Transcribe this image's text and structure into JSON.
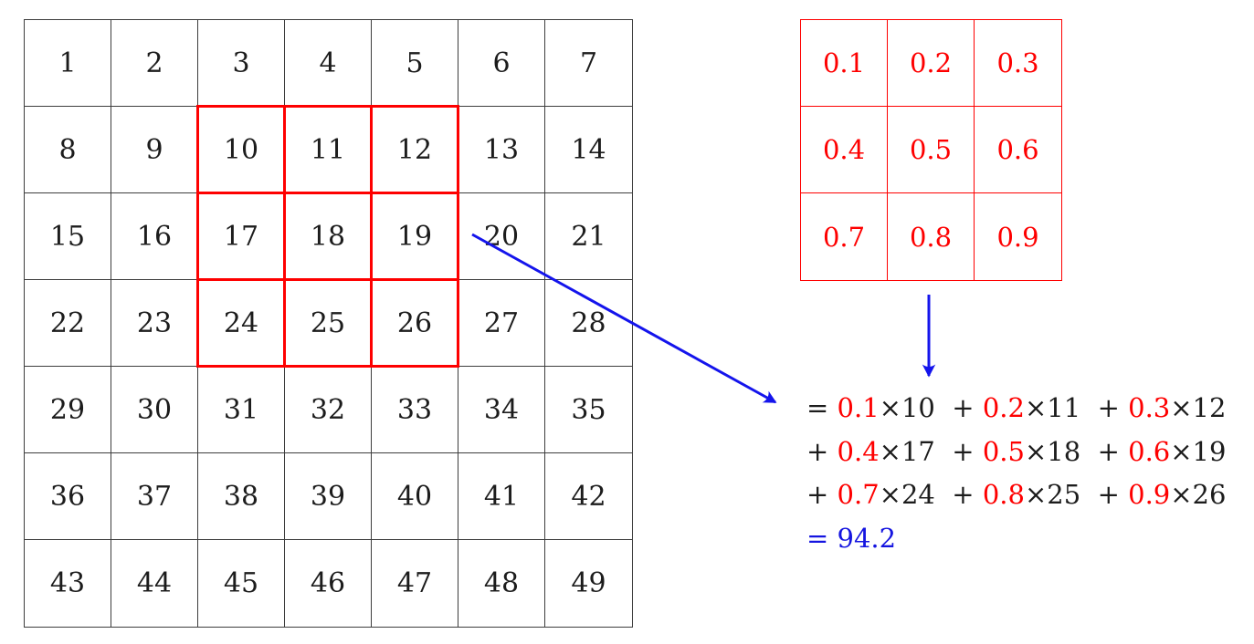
{
  "input_grid": {
    "rows": 7,
    "cols": 7,
    "values": [
      1,
      2,
      3,
      4,
      5,
      6,
      7,
      8,
      9,
      10,
      11,
      12,
      13,
      14,
      15,
      16,
      17,
      18,
      19,
      20,
      21,
      22,
      23,
      24,
      25,
      26,
      27,
      28,
      29,
      30,
      31,
      32,
      33,
      34,
      35,
      36,
      37,
      38,
      39,
      40,
      41,
      42,
      43,
      44,
      45,
      46,
      47,
      48,
      49
    ],
    "highlight": {
      "row_start": 1,
      "col_start": 2,
      "size": 3
    },
    "highlighted_values": [
      10,
      11,
      12,
      17,
      18,
      19,
      24,
      25,
      26
    ]
  },
  "kernel": {
    "rows": 3,
    "cols": 3,
    "values": [
      0.1,
      0.2,
      0.3,
      0.4,
      0.5,
      0.6,
      0.7,
      0.8,
      0.9
    ]
  },
  "equation": {
    "lines": [
      [
        {
          "t": "= ",
          "c": "black"
        },
        {
          "t": "0.1",
          "c": "red"
        },
        {
          "t": "×10",
          "c": "black"
        },
        {
          "t": "  + ",
          "c": "black"
        },
        {
          "t": "0.2",
          "c": "red"
        },
        {
          "t": "×11",
          "c": "black"
        },
        {
          "t": "  + ",
          "c": "black"
        },
        {
          "t": "0.3",
          "c": "red"
        },
        {
          "t": "×12",
          "c": "black"
        }
      ],
      [
        {
          "t": "+ ",
          "c": "black"
        },
        {
          "t": "0.4",
          "c": "red"
        },
        {
          "t": "×17",
          "c": "black"
        },
        {
          "t": "  + ",
          "c": "black"
        },
        {
          "t": "0.5",
          "c": "red"
        },
        {
          "t": "×18",
          "c": "black"
        },
        {
          "t": "  + ",
          "c": "black"
        },
        {
          "t": "0.6",
          "c": "red"
        },
        {
          "t": "×19",
          "c": "black"
        }
      ],
      [
        {
          "t": "+ ",
          "c": "black"
        },
        {
          "t": "0.7",
          "c": "red"
        },
        {
          "t": "×24",
          "c": "black"
        },
        {
          "t": "  + ",
          "c": "black"
        },
        {
          "t": "0.8",
          "c": "red"
        },
        {
          "t": "×25",
          "c": "black"
        },
        {
          "t": "  + ",
          "c": "black"
        },
        {
          "t": "0.9",
          "c": "red"
        },
        {
          "t": "×26",
          "c": "black"
        }
      ],
      [
        {
          "t": "= 94.2",
          "c": "blue"
        }
      ]
    ],
    "result": "94.2"
  },
  "colors": {
    "red": "#fe0000",
    "blue": "#1515e0",
    "black": "#1c1c1c",
    "grid_line": "#3d3d3d"
  }
}
